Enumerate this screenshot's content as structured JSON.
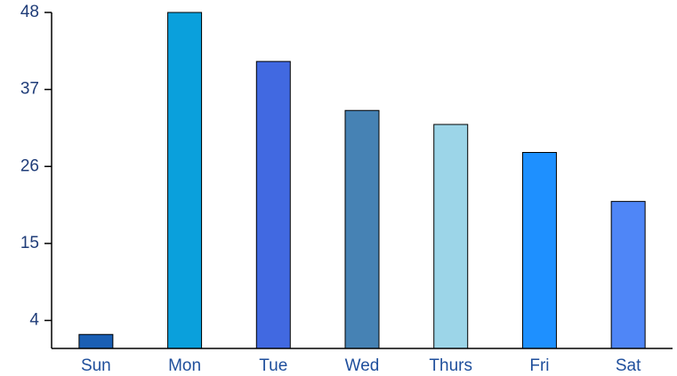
{
  "chart_data": {
    "type": "bar",
    "categories": [
      "Sun",
      "Mon",
      "Tue",
      "Wed",
      "Thurs",
      "Fri",
      "Sat"
    ],
    "values": [
      2,
      48,
      41,
      34,
      32,
      28,
      21
    ],
    "colors": [
      "#1a5fb4",
      "#0aa0dc",
      "#4169e1",
      "#4682b4",
      "#9cd5e8",
      "#1e90ff",
      "#4f86f7"
    ],
    "yticks": [
      4,
      15,
      26,
      37,
      48
    ],
    "ylim": [
      0,
      48
    ],
    "title": "",
    "xlabel": "",
    "ylabel": "",
    "grid": false,
    "legend": false
  }
}
